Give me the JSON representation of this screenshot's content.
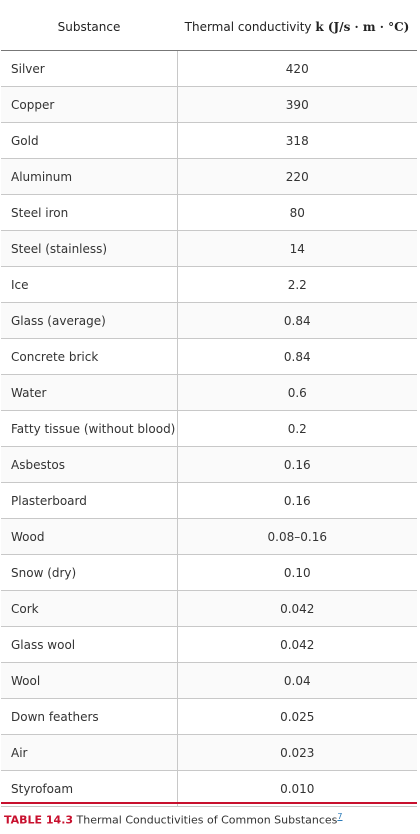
{
  "table": {
    "header": {
      "substance": "Substance",
      "conductivity_prefix": "Thermal conductivity",
      "conductivity_unit": "k (J/s · m · °C)"
    },
    "rows": [
      {
        "substance": "Silver",
        "k": "420"
      },
      {
        "substance": "Copper",
        "k": "390"
      },
      {
        "substance": "Gold",
        "k": "318"
      },
      {
        "substance": "Aluminum",
        "k": "220"
      },
      {
        "substance": "Steel iron",
        "k": "80"
      },
      {
        "substance": "Steel (stainless)",
        "k": "14"
      },
      {
        "substance": "Ice",
        "k": "2.2"
      },
      {
        "substance": "Glass (average)",
        "k": "0.84"
      },
      {
        "substance": "Concrete brick",
        "k": "0.84"
      },
      {
        "substance": "Water",
        "k": "0.6"
      },
      {
        "substance": "Fatty tissue (without blood)",
        "k": "0.2"
      },
      {
        "substance": "Asbestos",
        "k": "0.16"
      },
      {
        "substance": "Plasterboard",
        "k": "0.16"
      },
      {
        "substance": "Wood",
        "k": "0.08–0.16"
      },
      {
        "substance": "Snow (dry)",
        "k": "0.10"
      },
      {
        "substance": "Cork",
        "k": "0.042"
      },
      {
        "substance": "Glass wool",
        "k": "0.042"
      },
      {
        "substance": "Wool",
        "k": "0.04"
      },
      {
        "substance": "Down feathers",
        "k": "0.025"
      },
      {
        "substance": "Air",
        "k": "0.023"
      },
      {
        "substance": "Styrofoam",
        "k": "0.010"
      }
    ]
  },
  "caption": {
    "label": "TABLE 14.3",
    "text": "Thermal Conductivities of Common Substances",
    "footnote": "7"
  },
  "colors": {
    "accent": "#c8102e",
    "link": "#2a7ab8"
  }
}
